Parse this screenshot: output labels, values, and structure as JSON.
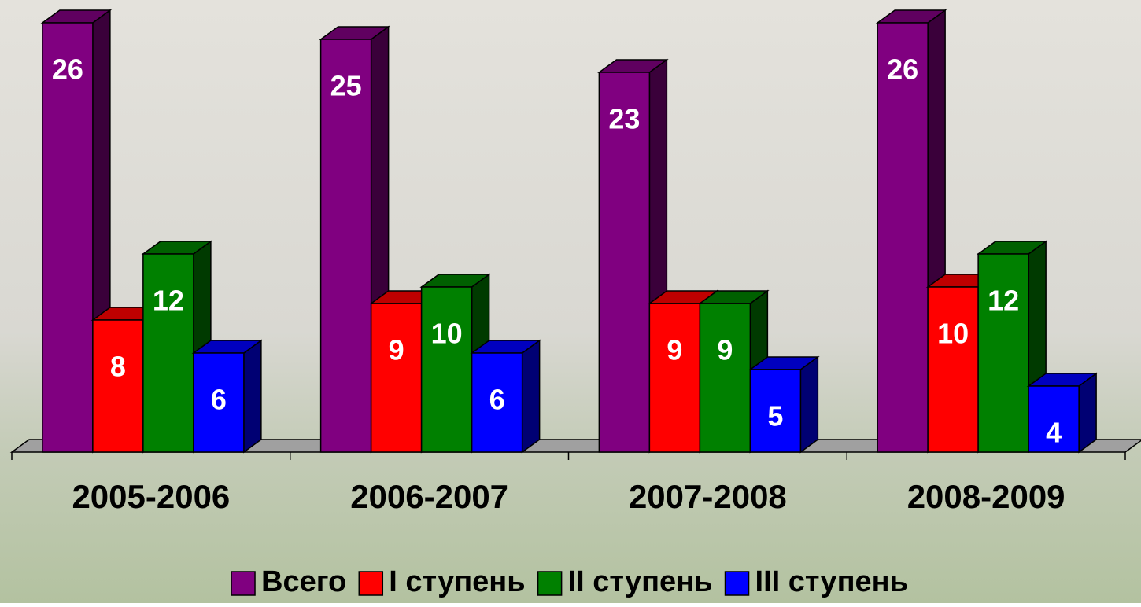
{
  "chart_data": {
    "type": "bar3d",
    "categories": [
      "2005-2006",
      "2006-2007",
      "2007-2008",
      "2008-2009"
    ],
    "series": [
      {
        "name": "Всего",
        "color": "#800080",
        "values": [
          26,
          25,
          23,
          26
        ]
      },
      {
        "name": "I ступень",
        "color": "#ff0000",
        "values": [
          8,
          9,
          9,
          10
        ]
      },
      {
        "name": "II ступень",
        "color": "#008000",
        "values": [
          12,
          10,
          9,
          12
        ]
      },
      {
        "name": "III ступень",
        "color": "#0000ff",
        "values": [
          6,
          6,
          5,
          4
        ]
      }
    ],
    "ylim": [
      0,
      27
    ],
    "legend": "bottom"
  }
}
